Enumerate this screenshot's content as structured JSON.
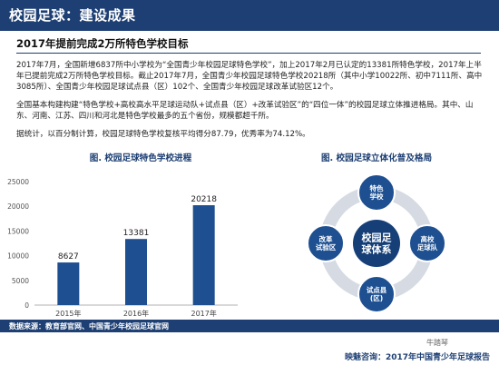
{
  "header": {
    "title": "校园足球：建设成果"
  },
  "section": {
    "subtitle": "2017年提前完成2万所特色学校目标"
  },
  "paragraphs": [
    "2017年7月，全国新增6837所中小学校为“全国青少年校园足球特色学校”，加上2017年2月已认定的13381所特色学校，2017年上半年已提前完成2万所特色学校目标。截止2017年7月，全国青少年校园足球特色学校20218所（其中小学10022所、初中7111所、高中3085所）、全国青少年校园足球试点县（区）102个、全国青少年校园足球改革试验区12个。",
    "全国基本构建构建“特色学校+高校高水平足球运动队+试点县（区）+改革试验区”的“四位一体”的校园足球立体推进格局。其中、山东、河南、江苏、四川和河北是特色学校最多的五个省份，规模都超千所。",
    "据统计，以百分制计算，校园足球特色学校复核平均得分87.79，优秀率为74.12%。"
  ],
  "bar_chart_title": "图. 校园足球特色学校进程",
  "diagram_title": "图. 校园足球立体化普及格局",
  "chart_data": {
    "type": "bar",
    "title": "图. 校园足球特色学校进程",
    "categories": [
      "2015年",
      "2016年",
      "2017年"
    ],
    "values": [
      8627,
      13381,
      20218
    ],
    "xlabel": "",
    "ylabel": "",
    "ylim": [
      0,
      25000
    ],
    "yticks": [
      0,
      5000,
      10000,
      15000,
      20000,
      25000
    ],
    "grid": false,
    "bar_color": "#1d4f91"
  },
  "diagram": {
    "center": "校园足\n球体系",
    "nodes": [
      {
        "label": "特色\n学校"
      },
      {
        "label": "高校\n足球队"
      },
      {
        "label": "试点县\n(区)"
      },
      {
        "label": "改革\n试验区"
      }
    ],
    "colors": {
      "ring": "#d6dbe3",
      "node": "#1d4f91",
      "center": "#163f78"
    }
  },
  "footer": {
    "source": "数据来源：教育部官网、中国青少年校园足球官网",
    "credit": "映魅咨询：2017年中国青少年足球报告",
    "watermark": "牛踏琴"
  }
}
